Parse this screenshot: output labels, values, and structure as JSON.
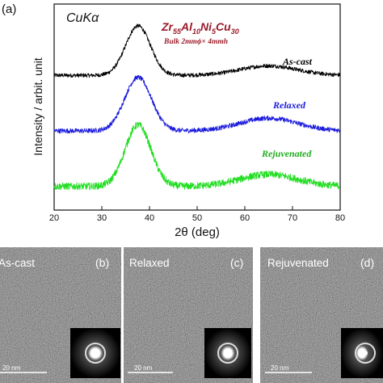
{
  "chart_data": {
    "type": "line",
    "panel_label": "(a)",
    "radiation": "CuKα",
    "composition": {
      "parts": [
        {
          "base": "Zr",
          "sub": "55"
        },
        {
          "base": "Al",
          "sub": "10"
        },
        {
          "base": "Ni",
          "sub": "5"
        },
        {
          "base": "Cu",
          "sub": "30"
        }
      ],
      "note": "Bulk  2mmϕ× 4mmh"
    },
    "xlabel": "2θ (deg)",
    "ylabel": "Intensity / arbit. unit",
    "xlim": [
      20,
      80
    ],
    "xticks": [
      20,
      30,
      40,
      50,
      60,
      70,
      80
    ],
    "x_tick_labels": [
      "20",
      "30",
      "40",
      "50",
      "60",
      "70",
      "80"
    ],
    "y_ticks_shown": false,
    "series": [
      {
        "name": "As-cast",
        "color": "#000000",
        "baseline": 3.4,
        "peak_center": 37.6,
        "peak_height": 1.25,
        "peak_width": 2.6,
        "hump_center": 65.0,
        "hump_height": 0.24,
        "hump_width": 6.0,
        "noise": 0.05
      },
      {
        "name": "Relaxed",
        "color": "#1a1adc",
        "baseline": 2.0,
        "peak_center": 37.6,
        "peak_height": 1.35,
        "peak_width": 2.8,
        "hump_center": 65.0,
        "hump_height": 0.32,
        "hump_width": 6.0,
        "noise": 0.06
      },
      {
        "name": "Rejuvenated",
        "color": "#22dd22",
        "baseline": 0.6,
        "peak_center": 37.6,
        "peak_height": 1.55,
        "peak_width": 2.7,
        "hump_center": 65.0,
        "hump_height": 0.3,
        "hump_width": 6.0,
        "noise": 0.09
      }
    ]
  },
  "tem_panels": [
    {
      "label": "As-cast",
      "letter": "(b)",
      "scale_bar": "20 nm"
    },
    {
      "label": "Relaxed",
      "letter": "(c)",
      "scale_bar": "20 nm"
    },
    {
      "label": "Rejuvenated",
      "letter": "(d)",
      "scale_bar": "20 nm"
    }
  ],
  "colors": {
    "as_cast": "#000000",
    "relaxed": "#1a1adc",
    "rejuvenated": "#22dd22",
    "composition_text": "#9a1a28",
    "tem_background": "#6f6f6f"
  }
}
